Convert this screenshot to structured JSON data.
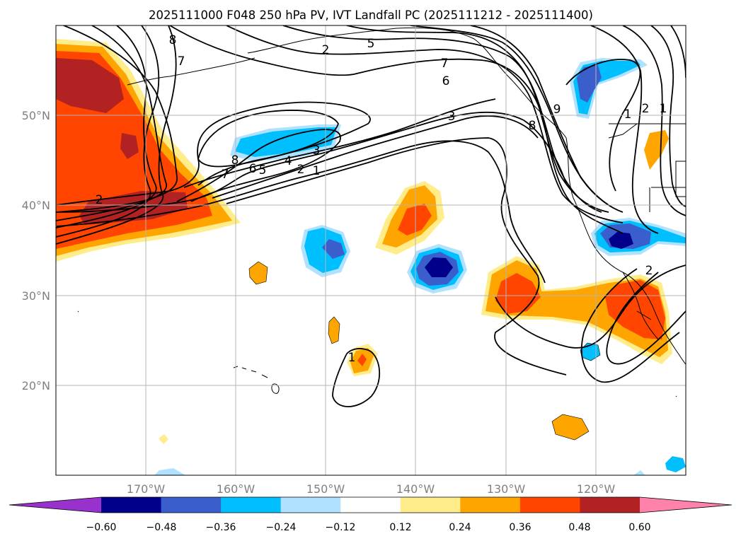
{
  "title": "2025111000 F048 250 hPa PV, IVT Landfall PC (2025111212 - 2025111400)",
  "map": {
    "lon_ticks": [
      {
        "label": "170°W",
        "lon": -170
      },
      {
        "label": "160°W",
        "lon": -160
      },
      {
        "label": "150°W",
        "lon": -150
      },
      {
        "label": "140°W",
        "lon": -140
      },
      {
        "label": "130°W",
        "lon": -130
      },
      {
        "label": "120°W",
        "lon": -120
      }
    ],
    "lat_ticks": [
      {
        "label": "50°N",
        "lat": 50
      },
      {
        "label": "40°N",
        "lat": 40
      },
      {
        "label": "30°N",
        "lat": 30
      },
      {
        "label": "20°N",
        "lat": 20
      }
    ],
    "lon_range": [
      -180,
      -110
    ],
    "lat_range": [
      10,
      60
    ],
    "grid": true
  },
  "contour_labels": [
    "8",
    "7",
    "2",
    "5",
    "7",
    "6",
    "3",
    "9",
    "8",
    "1",
    "2",
    "1",
    "8",
    "7",
    "6",
    "5",
    "4",
    "3",
    "2",
    "1",
    "2",
    "1",
    "2"
  ],
  "colorbar": {
    "colors": [
      "#9932cc",
      "#00008b",
      "#3a5fcd",
      "#00bfff",
      "#b0e2ff",
      "#ffffff",
      "#ffec8b",
      "#ffa500",
      "#ff4500",
      "#b22222",
      "#ff82ab"
    ],
    "tick_labels": [
      "−0.60",
      "−0.48",
      "−0.36",
      "−0.24",
      "−0.12",
      "0.12",
      "0.24",
      "0.36",
      "0.48",
      "0.60"
    ]
  }
}
